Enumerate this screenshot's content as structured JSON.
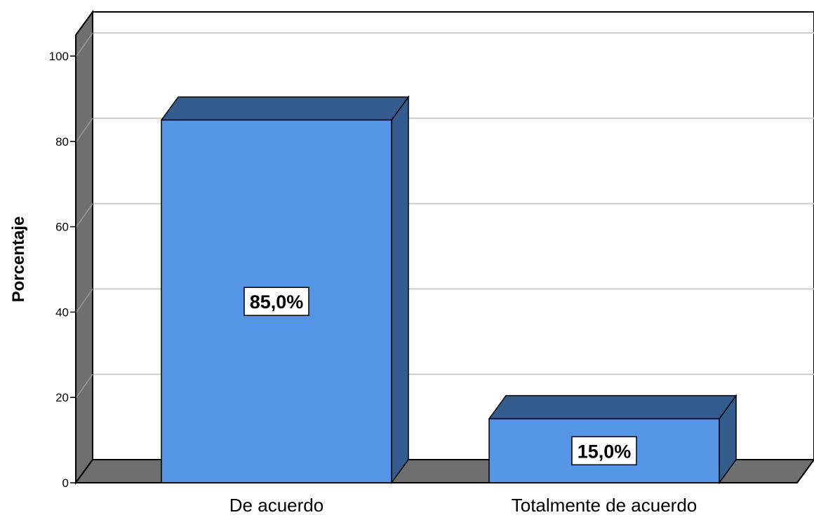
{
  "chart_data": {
    "type": "bar",
    "categories": [
      "De acuerdo",
      "Totalmente de acuerdo"
    ],
    "values": [
      85.0,
      15.0
    ],
    "value_labels": [
      "85,0%",
      "15,0%"
    ],
    "title": "",
    "xlabel": "",
    "ylabel": "Porcentaje",
    "ylim": [
      0,
      100
    ],
    "yticks": [
      "0",
      "20",
      "40",
      "60",
      "80",
      "100"
    ],
    "grid": true,
    "style": "3d",
    "colors": {
      "bar_front": "#5595e5",
      "bar_top": "#355c8f",
      "bar_side": "#355c8f",
      "wall": "#6f6f6f",
      "gridline": "#cccccc",
      "outline": "#000000"
    }
  }
}
